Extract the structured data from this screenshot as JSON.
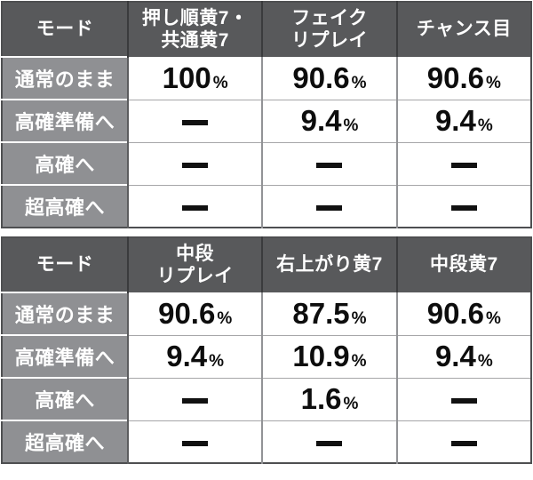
{
  "colors": {
    "header_bg": "#58595b",
    "header_separator": "#3a3b3d",
    "label_bg": "#8f9093",
    "outer_border": "#4e4f51",
    "value_text": "#0d0d0d",
    "header_text": "#ffffff"
  },
  "tables": [
    {
      "name": "mode-transition-table-1",
      "header": [
        "モード",
        "押し順黄7・\n共通黄7",
        "フェイク\nリプレイ",
        "チャンス目"
      ],
      "rows": [
        {
          "label": "通常のまま",
          "values": [
            "100%",
            "90.6%",
            "90.6%"
          ]
        },
        {
          "label": "高確準備へ",
          "values": [
            "-",
            "9.4%",
            "9.4%"
          ]
        },
        {
          "label": "高確へ",
          "values": [
            "-",
            "-",
            "-"
          ]
        },
        {
          "label": "超高確へ",
          "values": [
            "-",
            "-",
            "-"
          ]
        }
      ]
    },
    {
      "name": "mode-transition-table-2",
      "header": [
        "モード",
        "中段\nリプレイ",
        "右上がり黄7",
        "中段黄7"
      ],
      "rows": [
        {
          "label": "通常のまま",
          "values": [
            "90.6%",
            "87.5%",
            "90.6%"
          ]
        },
        {
          "label": "高確準備へ",
          "values": [
            "9.4%",
            "10.9%",
            "9.4%"
          ]
        },
        {
          "label": "高確へ",
          "values": [
            "-",
            "1.6%",
            "-"
          ]
        },
        {
          "label": "超高確へ",
          "values": [
            "-",
            "-",
            "-"
          ]
        }
      ]
    }
  ]
}
